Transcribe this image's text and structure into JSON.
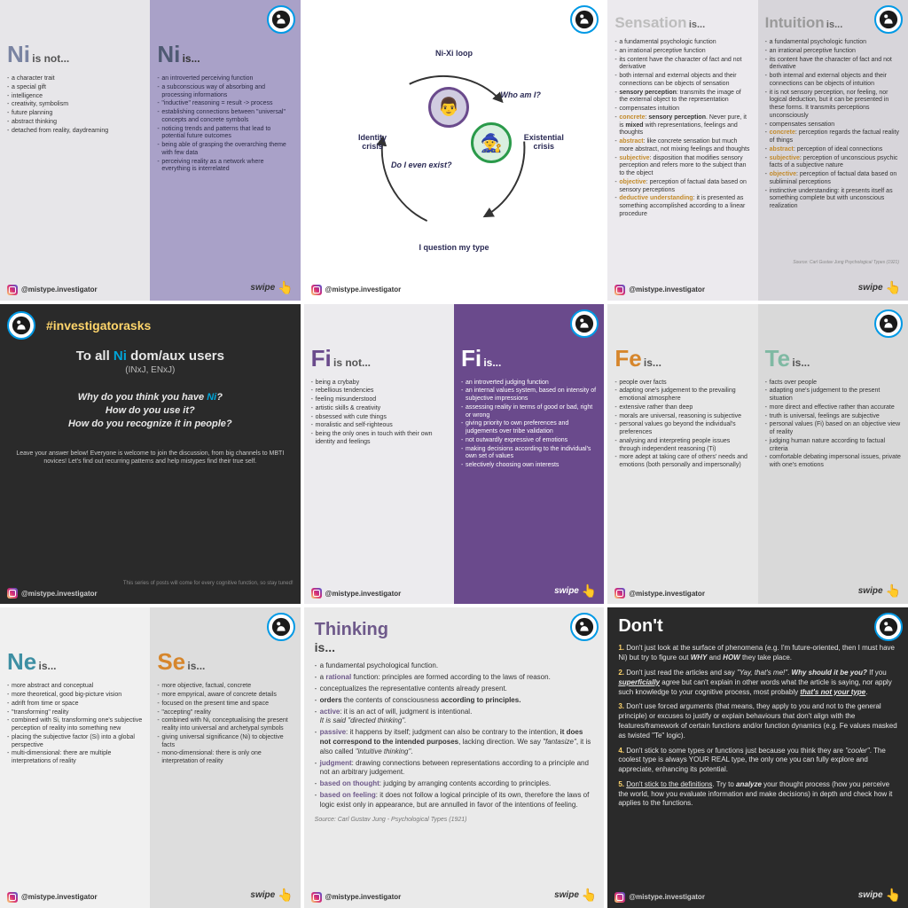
{
  "handle": "@mistype.investigator",
  "swipe_label": "swipe",
  "colors": {
    "light_gray": "#e7e6e9",
    "lavender": "#a9a1c8",
    "purple": "#6a4a8c",
    "dark": "#2a2a2a",
    "orange": "#d6862c",
    "teal": "#29a298",
    "blue_teal": "#3e8fa3",
    "ni_blue": "#4f5a73",
    "ni_light": "#7a84a2",
    "thinking_purple": "#6e598a",
    "accent_yellow": "#ffd56b",
    "ig_blue": "#0099e5"
  },
  "c1": {
    "left": {
      "bg": "#e7e6e9",
      "title": "Ni",
      "title_color": "#7a84a2",
      "tag": "is not...",
      "tag_color": "#555",
      "items": [
        "a character trait",
        "a special gift",
        "intelligence",
        "creativity, symbolism",
        "future planning",
        "abstract thinking",
        "detached from reality, daydreaming"
      ]
    },
    "right": {
      "bg": "#a9a1c8",
      "title": "Ni",
      "title_color": "#4f5a73",
      "tag": "is...",
      "tag_color": "#333",
      "items": [
        "an introverted perceiving function",
        "a subconscious way of absorbing and processing informations",
        "\"inductive\" reasoning = result -> process",
        "establishing connections between \"universal\" concepts and concrete symbols",
        "noticing trends and patterns that lead to potential future outcomes",
        "being able of grasping the overarching theme with few data",
        "perceiving reality as a network where everything is interrelated"
      ]
    }
  },
  "c2": {
    "top": "Ni-Xi loop",
    "right_q": "Who am I?",
    "left_label": "Identity crisis",
    "right_label": "Existential crisis",
    "mid_q": "Do I even exist?",
    "bottom": "I question my type",
    "avatar1_border": "#6a4a8c",
    "avatar2_border": "#2a9a4a"
  },
  "c3": {
    "left": {
      "bg": "#eceaee",
      "title": "Sensation",
      "title_color": "#bdbdbd",
      "tag": "is...",
      "tag_color": "#666",
      "items_html": [
        "a fundamental psychologic function",
        "an irrational perceptive function",
        "its content have the character of fact and not derivative",
        "both internal and external objects and their connections can be objects of sensation",
        "<span class='hl'>sensory perception</span>: transmits the image of the external object to the representation",
        "compensates intuition",
        "<span class='kw'>concrete</span>: <span class='hl'>sensory perception</span>. Never pure, it is <span class='hl'>mixed</span> with representations, feelings and thoughts",
        "<span class='kw'>abstract</span>: like concrete sensation but much more abstract, not mixing feelings and thoughts",
        "<span class='kw'>subjective</span>: disposition that modifies sensory perception and refers more to the subject than to the object",
        "<span class='kw'>objective</span>: perception of factual data based on sensory perceptions",
        "<span class='kw'>deductive understanding</span>: it is presented as something accomplished according to a linear procedure"
      ]
    },
    "right": {
      "bg": "#d7d5da",
      "title": "Intuition",
      "title_color": "#9a9a9a",
      "tag": "is...",
      "tag_color": "#666",
      "items_html": [
        "a fundamental psychologic function",
        "an irrational perceptive function",
        "its content have the character of fact and not derivative",
        "both internal and external objects and their connections can be objects of intuition",
        "it is not sensory perception, nor feeling, nor logical deduction, but it can be presented in these forms. It transmits perceptions unconsciously",
        "compensates sensation",
        "<span class='kw'>concrete</span>: perception regards the factual reality of things",
        "<span class='kw'>abstract</span>: perception of ideal connections",
        "<span class='kw'>subjective</span>: perception of unconscious psychic facts of a subjective nature",
        "<span class='kw'>objective</span>: perception of factual data based on subliminal perceptions",
        "instinctive understanding: it presents itself as something complete but with unconscious realization"
      ]
    },
    "source": "Source: Carl Gustav Jung\nPsychological Types (1921)"
  },
  "c4": {
    "hashtag": "#investigatorasks",
    "h3_pre": "To all ",
    "h3_ni": "Ni",
    "h3_post": " dom/aux users",
    "sub": "(INxJ, ENxJ)",
    "q1_pre": "Why do you think you have ",
    "q1_ni": "Ni",
    "q1_post": "?",
    "q2": "How do you use it?",
    "q3": "How do you recognize it in people?",
    "note": "Leave your answer below! Everyone is welcome to\njoin the discussion, from big channels to MBTI novices!\nLet's find out recurring patterns and help mistypes find their true self.",
    "series": "This series of posts will come for\nevery cognitive function, so stay tuned!"
  },
  "c5": {
    "left": {
      "bg": "#ecebee",
      "title": "Fi",
      "title_color": "#6a4a8c",
      "tag": "is not...",
      "tag_color": "#555",
      "items": [
        "being a crybaby",
        "rebellious tendencies",
        "feeling misunderstood",
        "artistic skills & creativity",
        "obsessed with cute things",
        "moralistic and self-righteous",
        "being the only ones in touch with their own identity and feelings"
      ]
    },
    "right": {
      "bg": "#6a4a8c",
      "title": "Fi",
      "title_color": "#ffffff",
      "tag": "is...",
      "tag_color": "#ffffff",
      "items": [
        "an introverted judging function",
        "an internal values system, based on intensity of subjective impressions",
        "assessing reality in terms of good or bad, right or wrong",
        "giving priority to own preferences and judgements over tribe validation",
        "not outwardly expressive of emotions",
        "making decisions according to the individual's own set of values",
        "selectively choosing own interests"
      ]
    }
  },
  "c6": {
    "left": {
      "bg": "#e7e7e7",
      "title": "Fe",
      "title_color": "#d6862c",
      "tag": "is...",
      "tag_color": "#555",
      "items": [
        "people over facts",
        "adapting one's judgement to the prevailing emotional atmosphere",
        "extensive rather than deep",
        "morals are universal, reasoning is subjective",
        "personal values go beyond the individual's preferences",
        "analysing and interpreting people issues through independent reasoning (Ti)",
        "more adept at taking care of others' needs and emotions (both personally and impersonally)"
      ]
    },
    "right": {
      "bg": "#d9d9d9",
      "title": "Te",
      "title_color": "#7fb9a3",
      "tag": "is...",
      "tag_color": "#555",
      "items": [
        "facts over people",
        "adapting one's judgement to the present situation",
        "more direct and effective rather than accurate",
        "truth is universal, feelings are subjective",
        "personal values (Fi) based on an objective view of reality",
        "judging human nature according to factual criteria",
        "comfortable debating impersonal issues, private with one's emotions"
      ]
    }
  },
  "c7": {
    "left": {
      "bg": "#f0f0f0",
      "title": "Ne",
      "title_color": "#3e8fa3",
      "tag": "is...",
      "tag_color": "#555",
      "items": [
        "more abstract and conceptual",
        "more theoretical, good big-picture vision",
        "adrift from time or space",
        "\"transforming\" reality",
        "combined with Si, transforming one's subjective perception of reality into something new",
        "placing the subjective factor (Si) into a global perspective",
        "multi-dimensional: there are multiple interpretations of reality"
      ]
    },
    "right": {
      "bg": "#dddddd",
      "title": "Se",
      "title_color": "#d6862c",
      "tag": "is...",
      "tag_color": "#555",
      "items": [
        "more objective, factual, concrete",
        "more empyrical, aware of concrete details",
        "focused on the present time and space",
        "\"accepting\" reality",
        "combined with Ni, conceptualising the present reality into universal and archetypal symbols",
        "giving universal significance (Ni) to objective facts",
        "mono-dimensional: there is only one interpretation of reality"
      ]
    }
  },
  "c8": {
    "title": "Thinking",
    "tag": "is...",
    "items_html": [
      "a fundamental psychological function.",
      "a <span class='hl-p'>rational</span> function: principles are formed according to the laws of reason.",
      "conceptualizes the representative contents already present.",
      "<span class='hl'>orders</span> the contents of consciousness <span class='hl'>according to principles.</span>",
      "<span class='hl-p'>active</span>: it is an act of will, judgment is intentional.<br><i>It is said \"directed thinking\".</i>",
      "<span class='hl-p'>passive</span>: it happens by itself; judgment can also be contrary to the intention, <span class='hl'>it does not correspond to the intended purposes</span>, lacking direction. We say <i>\"fantasize\"</i>, it is also called <i>\"intuitive thinking\"</i>.",
      "<span class='hl-p'>judgment</span>: drawing connections between representations according to a principle and not an arbitrary judgement.",
      "<span class='hl-p'>based on thought</span>: judging by arranging contents according to principles.",
      "<span class='hl-p'>based on feeling</span>: it does not follow a logical principle of its own, therefore the laws of logic exist only in appearance, but are annulled in favor of the intentions of feeling."
    ],
    "source": "Source: Carl Gustav Jung - Psychological Types (1921)"
  },
  "c9": {
    "title": "Don't",
    "items": [
      "<span class='num'>1.</span> Don't just look at the surface of phenomena (e.g. I'm future-oriented, then I must have Ni) but try to figure out <i class='em'>WHY</i> and <i class='em'>HOW</i> they take place.",
      "<span class='num'>2.</span> Don't just read the articles and say <i>\"Yay, that's me!\"</i>. <span class='em'>Why should it be you?</span> If you <i class='em u'>superficially</i> agree but can't explain in other words what the article is saying, nor apply such knowledge to your cognitive process, most probably <i class='em u'>that's not your type</i>.",
      "<span class='num'>3.</span> Don't use forced arguments (that means, they apply to you and not to the general principle) or excuses to justify or explain behaviours that don't align with the features/framework of certain functions and/or function dynamics (e.g. Fe values masked as twisted \"Te\" logic).",
      "<span class='num'>4.</span> Don't stick to some types or functions just because you think they are <i>\"cooler\"</i>. The coolest type is always YOUR REAL type, the only one you can fully explore and appreciate, enhancing its potential.",
      "<span class='num'>5.</span> <span class='u'>Don't stick to the definitions</span>. Try to <span class='em'>analyze</span> your thought process (how you perceive the world, how you evaluate information and make decisions) in depth and check how it applies to the functions."
    ]
  }
}
